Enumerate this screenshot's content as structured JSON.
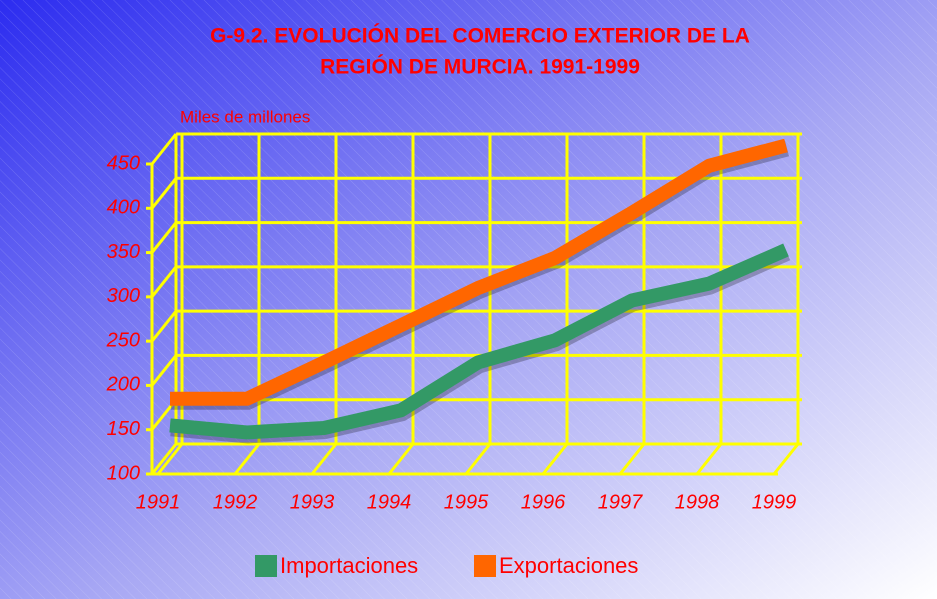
{
  "chart_data": {
    "type": "line",
    "title": [
      "G-9.2. EVOLUCIÓN  DEL COMERCIO EXTERIOR DE LA",
      "REGIÓN DE MURCIA. 1991-1999"
    ],
    "ylabel": "Miles de millones",
    "categories": [
      "1991",
      "1992",
      "1993",
      "1994",
      "1995",
      "1996",
      "1997",
      "1998",
      "1999"
    ],
    "series": [
      {
        "name": "Importaciones",
        "color": "#339966",
        "values": [
          138,
          130,
          135,
          155,
          209,
          234,
          279,
          298,
          336
        ]
      },
      {
        "name": "Exportaciones",
        "color": "#ff6600",
        "values": [
          168,
          168,
          209,
          251,
          293,
          327,
          378,
          431,
          454
        ]
      }
    ],
    "ylim": [
      100,
      450
    ],
    "yticks": [
      100,
      150,
      200,
      250,
      300,
      350,
      400,
      450
    ],
    "grid": true
  }
}
